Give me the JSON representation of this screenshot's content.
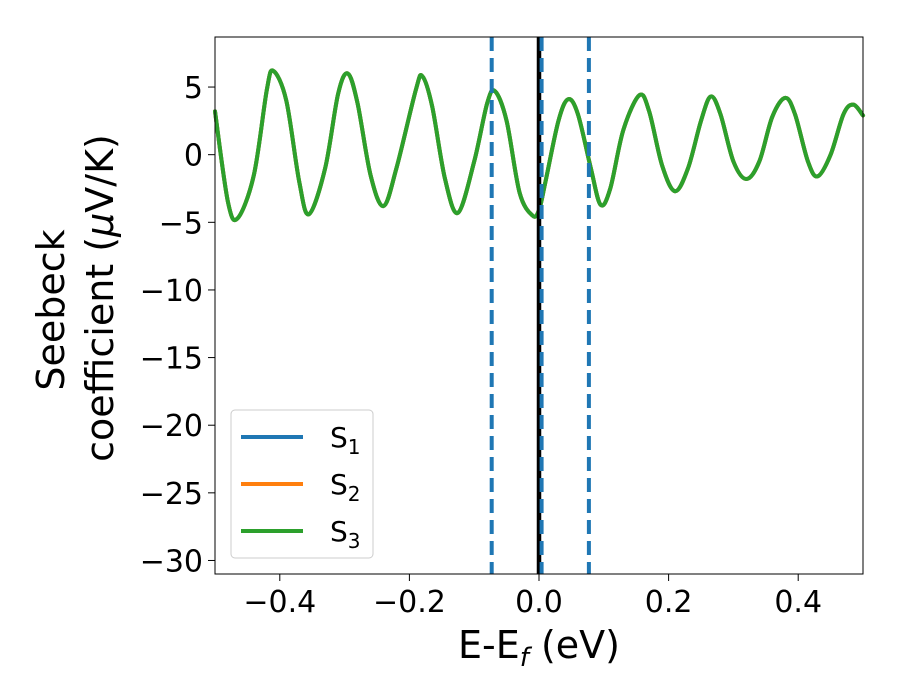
{
  "chart_data": {
    "type": "line",
    "xlabel": {
      "main": "E-E",
      "sub": "f",
      "unit": " (eV)"
    },
    "ylabel": {
      "line1": "Seebeck",
      "line2": "coefficient  (",
      "mu": "μ",
      "line2_end": "V/K)"
    },
    "xlim": [
      -0.5,
      0.5
    ],
    "ylim": [
      -31,
      8.7
    ],
    "x_ticks": [
      -0.4,
      -0.2,
      0.0,
      0.2,
      0.4
    ],
    "x_tick_labels": [
      "−0.4",
      "−0.2",
      "0.0",
      "0.2",
      "0.4"
    ],
    "y_ticks": [
      5,
      0,
      -5,
      -10,
      -15,
      -20,
      -25,
      -30
    ],
    "y_tick_labels": [
      "5",
      "0",
      "−5",
      "−10",
      "−15",
      "−20",
      "−25",
      "−30"
    ],
    "grid": false,
    "legend_position": "lower-left",
    "colors": {
      "S1": "#1f77b4",
      "S2": "#ff7f0e",
      "S3": "#2ca02c",
      "fermi": "#000000",
      "dashed": "#1f77b4"
    },
    "vertical_lines": [
      {
        "x": 0.0,
        "style": "solid",
        "color": "#000000"
      },
      {
        "x": -0.073,
        "style": "dashed",
        "color": "#1f77b4"
      },
      {
        "x": 0.004,
        "style": "dashed",
        "color": "#1f77b4"
      },
      {
        "x": 0.077,
        "style": "dashed",
        "color": "#1f77b4"
      }
    ],
    "series": [
      {
        "name": "S",
        "subscript": "1",
        "color": "#1f77b4",
        "points": [
          [
            -0.5,
            3.2
          ],
          [
            -0.48,
            -3.5
          ],
          [
            -0.465,
            -4.7
          ],
          [
            -0.44,
            -1.5
          ],
          [
            -0.42,
            4.8
          ],
          [
            -0.41,
            6.2
          ],
          [
            -0.39,
            4.0
          ],
          [
            -0.37,
            -2.0
          ],
          [
            -0.355,
            -4.4
          ],
          [
            -0.33,
            -1.0
          ],
          [
            -0.31,
            4.5
          ],
          [
            -0.295,
            6.0
          ],
          [
            -0.28,
            3.8
          ],
          [
            -0.26,
            -1.5
          ],
          [
            -0.24,
            -3.8
          ],
          [
            -0.22,
            -1.0
          ],
          [
            -0.19,
            4.8
          ],
          [
            -0.18,
            5.8
          ],
          [
            -0.165,
            3.6
          ],
          [
            -0.145,
            -1.8
          ],
          [
            -0.125,
            -4.3
          ],
          [
            -0.1,
            -0.5
          ],
          [
            -0.08,
            3.8
          ],
          [
            -0.068,
            4.7
          ],
          [
            -0.05,
            2.5
          ],
          [
            -0.03,
            -2.8
          ],
          [
            -0.01,
            -4.5
          ],
          [
            0.0,
            -4.1
          ],
          [
            0.01,
            -2.0
          ],
          [
            0.03,
            2.5
          ],
          [
            0.045,
            4.1
          ],
          [
            0.06,
            3.0
          ],
          [
            0.08,
            -1.0
          ],
          [
            0.095,
            -3.7
          ],
          [
            0.11,
            -2.5
          ],
          [
            0.13,
            1.8
          ],
          [
            0.155,
            4.4
          ],
          [
            0.17,
            3.2
          ],
          [
            0.19,
            -0.8
          ],
          [
            0.21,
            -2.7
          ],
          [
            0.23,
            -1.0
          ],
          [
            0.25,
            2.5
          ],
          [
            0.265,
            4.3
          ],
          [
            0.28,
            3.0
          ],
          [
            0.3,
            -0.5
          ],
          [
            0.32,
            -1.8
          ],
          [
            0.34,
            -0.5
          ],
          [
            0.36,
            2.8
          ],
          [
            0.38,
            4.2
          ],
          [
            0.395,
            3.0
          ],
          [
            0.415,
            -0.5
          ],
          [
            0.43,
            -1.6
          ],
          [
            0.45,
            0.0
          ],
          [
            0.47,
            3.0
          ],
          [
            0.485,
            3.7
          ],
          [
            0.5,
            2.9
          ]
        ]
      },
      {
        "name": "S",
        "subscript": "2",
        "color": "#ff7f0e",
        "points": [
          [
            -0.5,
            3.2
          ],
          [
            -0.48,
            -3.5
          ],
          [
            -0.465,
            -4.7
          ],
          [
            -0.44,
            -1.5
          ],
          [
            -0.42,
            4.8
          ],
          [
            -0.41,
            6.2
          ],
          [
            -0.39,
            4.0
          ],
          [
            -0.37,
            -2.0
          ],
          [
            -0.355,
            -4.4
          ],
          [
            -0.33,
            -1.0
          ],
          [
            -0.31,
            4.5
          ],
          [
            -0.295,
            6.0
          ],
          [
            -0.28,
            3.8
          ],
          [
            -0.26,
            -1.5
          ],
          [
            -0.24,
            -3.8
          ],
          [
            -0.22,
            -1.0
          ],
          [
            -0.19,
            4.8
          ],
          [
            -0.18,
            5.8
          ],
          [
            -0.165,
            3.6
          ],
          [
            -0.145,
            -1.8
          ],
          [
            -0.125,
            -4.3
          ],
          [
            -0.1,
            -0.5
          ],
          [
            -0.08,
            3.8
          ],
          [
            -0.068,
            4.7
          ],
          [
            -0.05,
            2.5
          ],
          [
            -0.03,
            -2.8
          ],
          [
            -0.01,
            -4.5
          ],
          [
            0.0,
            -4.1
          ],
          [
            0.01,
            -2.0
          ],
          [
            0.03,
            2.5
          ],
          [
            0.045,
            4.1
          ],
          [
            0.06,
            3.0
          ],
          [
            0.08,
            -1.0
          ],
          [
            0.095,
            -3.7
          ],
          [
            0.11,
            -2.5
          ],
          [
            0.13,
            1.8
          ],
          [
            0.155,
            4.4
          ],
          [
            0.17,
            3.2
          ],
          [
            0.19,
            -0.8
          ],
          [
            0.21,
            -2.7
          ],
          [
            0.23,
            -1.0
          ],
          [
            0.25,
            2.5
          ],
          [
            0.265,
            4.3
          ],
          [
            0.28,
            3.0
          ],
          [
            0.3,
            -0.5
          ],
          [
            0.32,
            -1.8
          ],
          [
            0.34,
            -0.5
          ],
          [
            0.36,
            2.8
          ],
          [
            0.38,
            4.2
          ],
          [
            0.395,
            3.0
          ],
          [
            0.415,
            -0.5
          ],
          [
            0.43,
            -1.6
          ],
          [
            0.45,
            0.0
          ],
          [
            0.47,
            3.0
          ],
          [
            0.485,
            3.7
          ],
          [
            0.5,
            2.9
          ]
        ]
      },
      {
        "name": "S",
        "subscript": "3",
        "color": "#2ca02c",
        "points": [
          [
            -0.5,
            3.2
          ],
          [
            -0.48,
            -3.5
          ],
          [
            -0.465,
            -4.7
          ],
          [
            -0.44,
            -1.5
          ],
          [
            -0.42,
            4.8
          ],
          [
            -0.41,
            6.2
          ],
          [
            -0.39,
            4.0
          ],
          [
            -0.37,
            -2.0
          ],
          [
            -0.355,
            -4.4
          ],
          [
            -0.33,
            -1.0
          ],
          [
            -0.31,
            4.5
          ],
          [
            -0.295,
            6.0
          ],
          [
            -0.28,
            3.8
          ],
          [
            -0.26,
            -1.5
          ],
          [
            -0.24,
            -3.8
          ],
          [
            -0.22,
            -1.0
          ],
          [
            -0.19,
            4.8
          ],
          [
            -0.18,
            5.8
          ],
          [
            -0.165,
            3.6
          ],
          [
            -0.145,
            -1.8
          ],
          [
            -0.125,
            -4.3
          ],
          [
            -0.1,
            -0.5
          ],
          [
            -0.08,
            3.8
          ],
          [
            -0.068,
            4.7
          ],
          [
            -0.05,
            2.5
          ],
          [
            -0.03,
            -2.8
          ],
          [
            -0.01,
            -4.5
          ],
          [
            0.0,
            -4.1
          ],
          [
            0.01,
            -2.0
          ],
          [
            0.03,
            2.5
          ],
          [
            0.045,
            4.1
          ],
          [
            0.06,
            3.0
          ],
          [
            0.08,
            -1.0
          ],
          [
            0.095,
            -3.7
          ],
          [
            0.11,
            -2.5
          ],
          [
            0.13,
            1.8
          ],
          [
            0.155,
            4.4
          ],
          [
            0.17,
            3.2
          ],
          [
            0.19,
            -0.8
          ],
          [
            0.21,
            -2.7
          ],
          [
            0.23,
            -1.0
          ],
          [
            0.25,
            2.5
          ],
          [
            0.265,
            4.3
          ],
          [
            0.28,
            3.0
          ],
          [
            0.3,
            -0.5
          ],
          [
            0.32,
            -1.8
          ],
          [
            0.34,
            -0.5
          ],
          [
            0.36,
            2.8
          ],
          [
            0.38,
            4.2
          ],
          [
            0.395,
            3.0
          ],
          [
            0.415,
            -0.5
          ],
          [
            0.43,
            -1.6
          ],
          [
            0.45,
            0.0
          ],
          [
            0.47,
            3.0
          ],
          [
            0.485,
            3.7
          ],
          [
            0.5,
            2.9
          ]
        ]
      }
    ]
  }
}
